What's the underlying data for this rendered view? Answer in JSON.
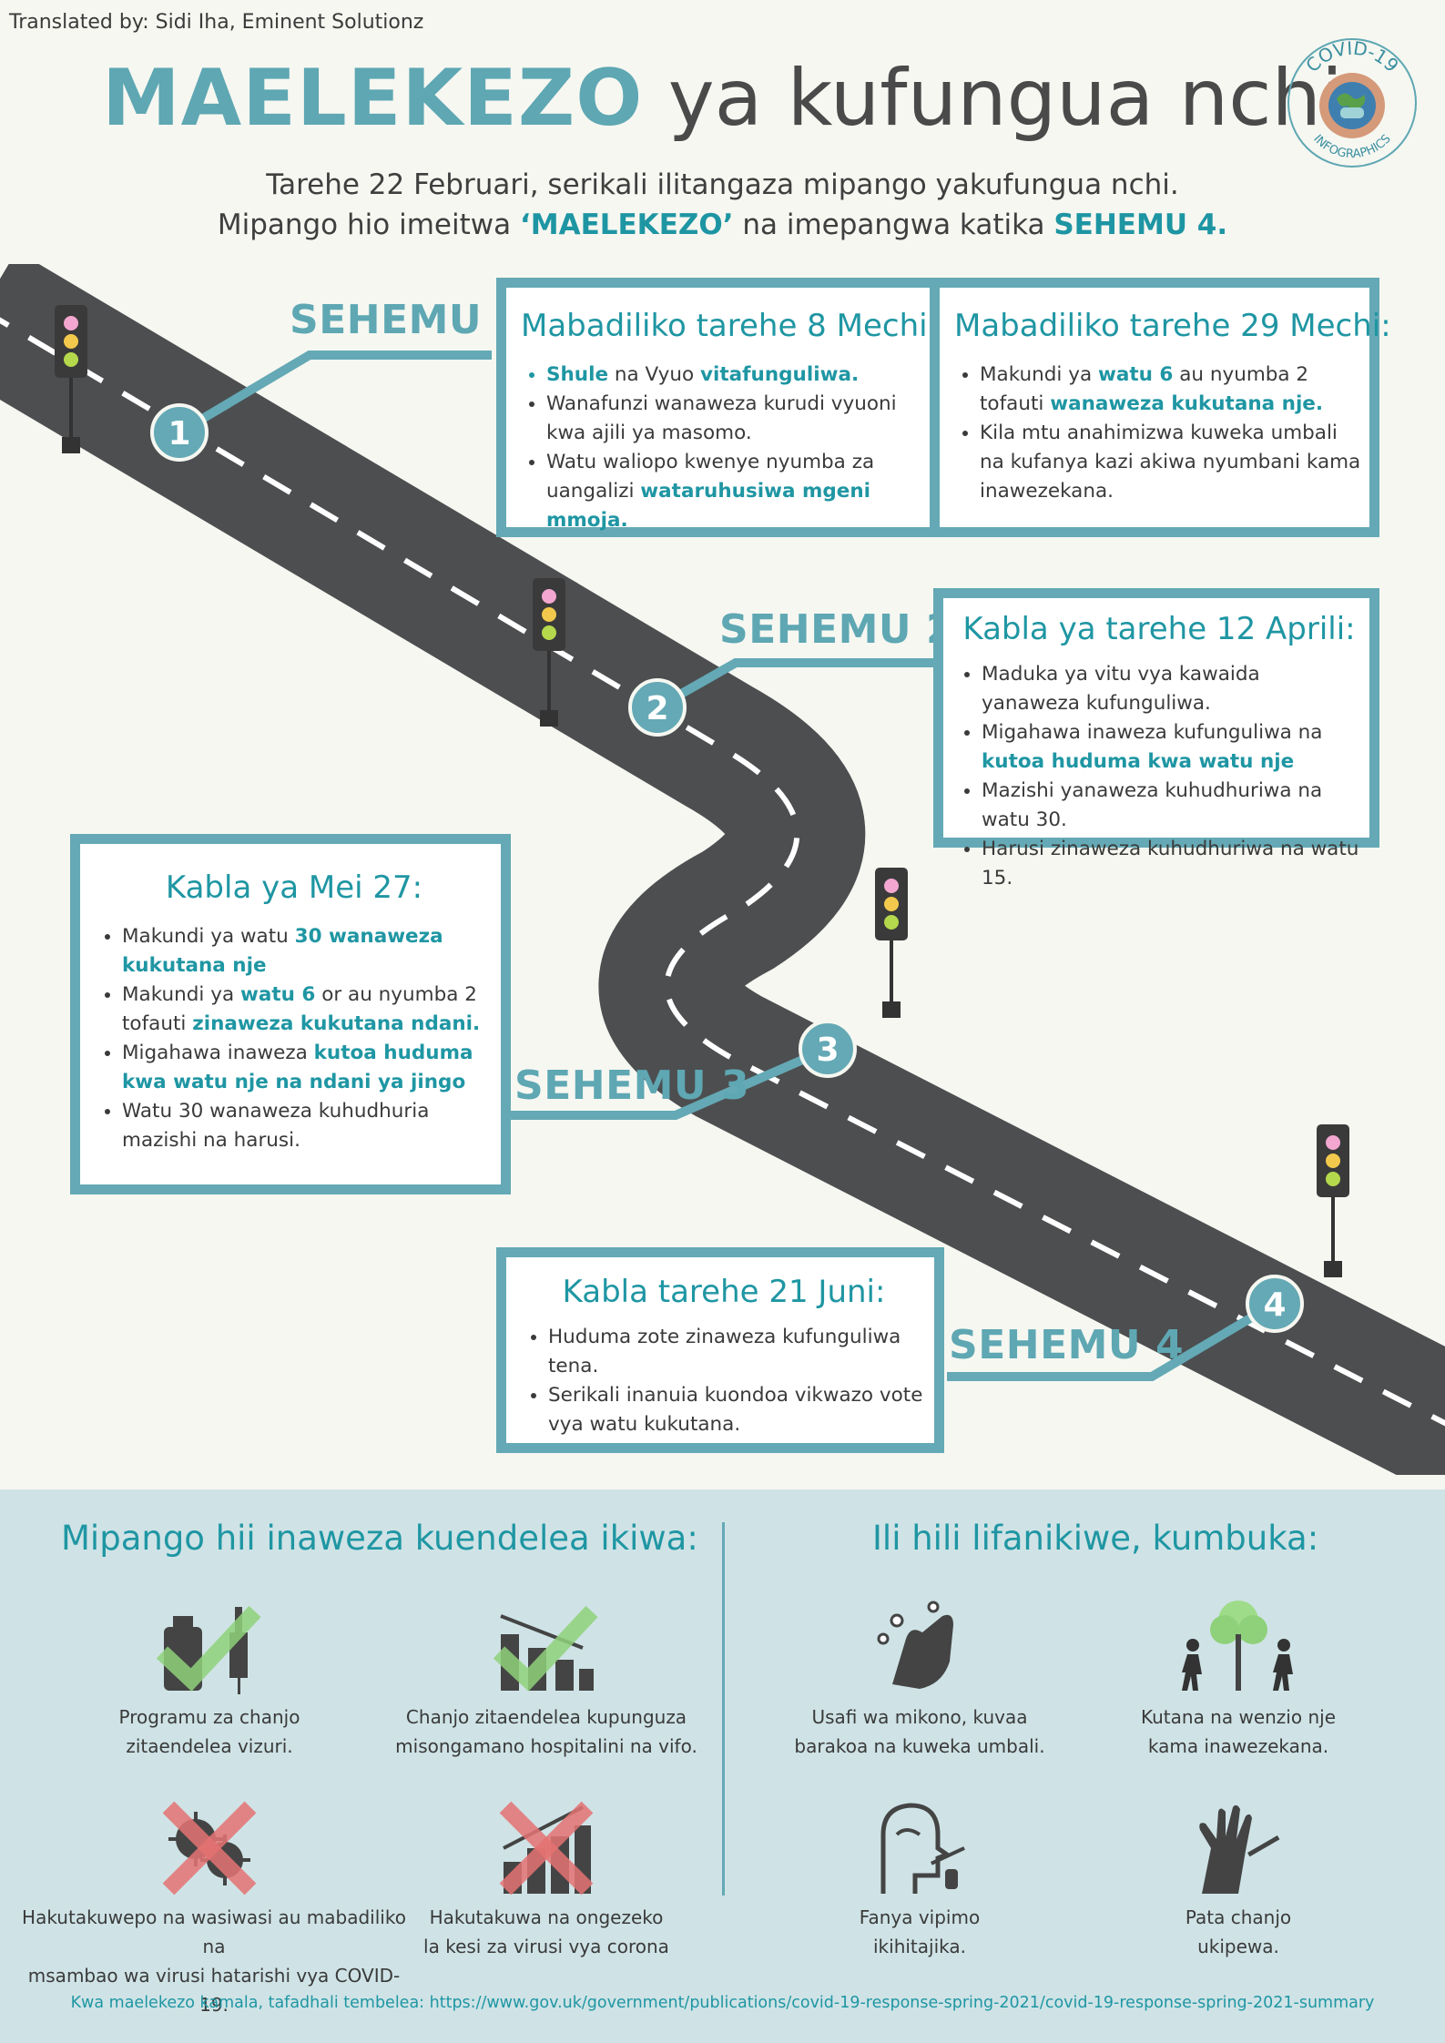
{
  "credit": "Translated by: Sidi Iha, Eminent Solutionz",
  "title": {
    "part1": "MAELEKEZO",
    "part2": "ya kufungua nchi"
  },
  "logo": {
    "top_text": "COVID-19",
    "bottom_text": "INFOGRAPHICS"
  },
  "intro": {
    "line1": "Tarehe 22 Februari, serikali ilitangaza mipango yakufungua nchi.",
    "line2_a": "Mipango hio imeitwa ",
    "line2_b": "‘MAELEKEZO’",
    "line2_c": " na imepangwa katika ",
    "line2_d": "SEHEMU 4."
  },
  "steps": {
    "s1": {
      "label": "SEHEMU 1",
      "num": "1"
    },
    "s2": {
      "label": "SEHEMU 2",
      "num": "2"
    },
    "s3": {
      "label": "SEHEMU 3",
      "num": "3"
    },
    "s4": {
      "label": "SEHEMU 4",
      "num": "4"
    }
  },
  "box1a": {
    "title": "Mabadiliko tarehe 8 Mechi:",
    "b1_hl": "Shule",
    "b1_mid": " na Vyuo ",
    "b1_hl2": "vitafunguliwa.",
    "b2": "Wanafunzi wanaweza kurudi vyuoni kwa ajili ya masomo.",
    "b3_a": "Watu waliopo kwenye nyumba za uangalizi ",
    "b3_hl": "wataruhusiwa mgeni mmoja."
  },
  "box1b": {
    "title": "Mabadiliko tarehe 29 Mechi:",
    "b1_a": "Makundi ya ",
    "b1_hl": "watu 6",
    "b1_b": " au nyumba 2 tofauti ",
    "b1_hl2": "wanaweza kukutana nje.",
    "b2": "Kila mtu anahimizwa kuweka umbali na kufanya kazi akiwa nyumbani kama inawezekana."
  },
  "box2": {
    "title": "Kabla ya tarehe 12 Aprili:",
    "b1": "Maduka ya vitu vya kawaida yanaweza kufunguliwa.",
    "b2_a": "Migahawa inaweza kufunguliwa na ",
    "b2_hl": "kutoa huduma kwa watu nje",
    "b3": "Mazishi yanaweza kuhudhuriwa na watu 30.",
    "b4": "Harusi zinaweza kuhudhuriwa na watu 15."
  },
  "box3": {
    "title": "Kabla ya Mei 27:",
    "b1_a": "Makundi ya watu ",
    "b1_hl": "30 wanaweza kukutana nje",
    "b2_a": "Makundi ya ",
    "b2_hl": "watu 6",
    "b2_b": " or au nyumba 2 tofauti ",
    "b2_hl2": "zinaweza kukutana ndani.",
    "b3_a": "Migahawa inaweza ",
    "b3_hl": "kutoa huduma kwa watu nje na ndani ya jingo",
    "b4": "Watu 30 wanaweza kuhudhuria mazishi na harusi."
  },
  "box4": {
    "title": "Kabla tarehe 21 Juni:",
    "b1": "Huduma zote zinaweza kufunguliwa tena.",
    "b2": "Serikali inanuia kuondoa vikwazo vote vya watu kukutana."
  },
  "bottom": {
    "left_title": "Mipango hii inaweza kuendelea ikiwa:",
    "right_title": "Ili hili  lifanikiwe, kumbuka:",
    "items": [
      {
        "l1": "Programu za chanjo",
        "l2": "zitaendelea  vizuri.",
        "icon": "vaccine-check-icon"
      },
      {
        "l1": "Chanjo  zitaendelea  kupunguza",
        "l2": "misongamano hospitalini na vifo.",
        "icon": "chart-down-check-icon"
      },
      {
        "l1": "Hakutakuwepo na wasiwasi au mabadiliko na",
        "l2": "msambao  wa virusi hatarishi vya COVID-19.",
        "icon": "virus-cross-icon"
      },
      {
        "l1": "Hakutakuwa na ongezeko",
        "l2": "la kesi za virusi vya corona",
        "icon": "chart-up-cross-icon"
      },
      {
        "l1": "Usafi wa mikono, kuvaa",
        "l2": "barakoa na kuweka umbali.",
        "icon": "washing-hands-icon"
      },
      {
        "l1": "Kutana na wenzio nje",
        "l2": "kama inawezekana.",
        "icon": "people-outdoors-icon"
      },
      {
        "l1": "Fanya vipimo",
        "l2": "ikihitajika.",
        "icon": "swab-test-icon"
      },
      {
        "l1": "Pata chanjo",
        "l2": "ukipewa.",
        "icon": "vaccination-arm-icon"
      }
    ]
  },
  "footer": {
    "text": "Kwa maelekezo kamala, tafadhali tembelea: https://www.gov.uk/government/publications/covid-19-response-spring-2021/covid-19-response-spring-2021-summary"
  },
  "colors": {
    "teal": "#64a9b5",
    "teal_dark": "#1f96a3",
    "road": "#4d4e50",
    "bg": "#f6f7f1",
    "bottom_bg": "#cfe3e6"
  }
}
